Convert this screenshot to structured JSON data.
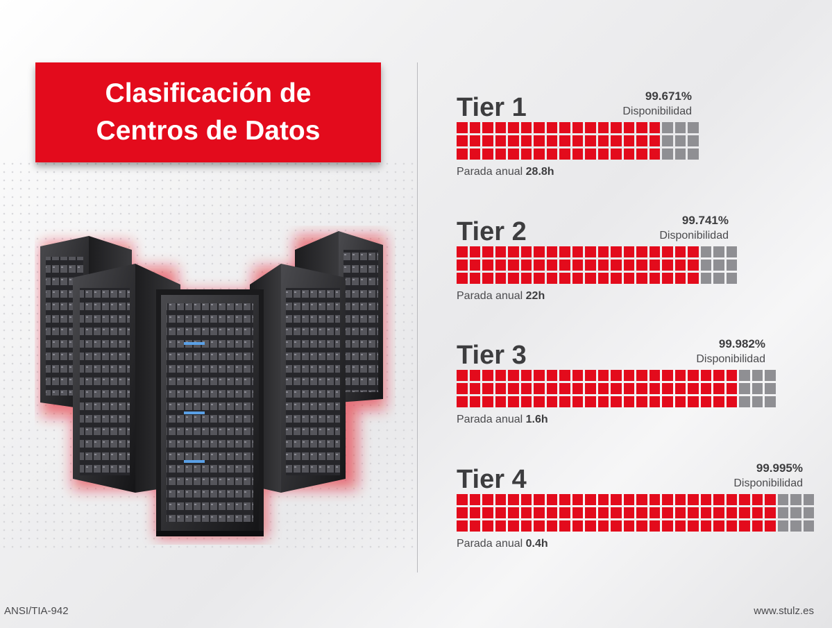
{
  "title": {
    "line1": "Clasificación de",
    "line2": "Centros de Datos"
  },
  "tiers": [
    {
      "name": "Tier 1",
      "availability": "99.671%",
      "availability_label": "Disponibilidad",
      "downtime_label": "Parada anual",
      "downtime_value": "28.8h",
      "red_columns": 16,
      "grey_columns": 3
    },
    {
      "name": "Tier 2",
      "availability": "99.741%",
      "availability_label": "Disponibilidad",
      "downtime_label": "Parada anual",
      "downtime_value": "22h",
      "red_columns": 19,
      "grey_columns": 3
    },
    {
      "name": "Tier 3",
      "availability": "99.982%",
      "availability_label": "Disponibilidad",
      "downtime_label": "Parada anual",
      "downtime_value": "1.6h",
      "red_columns": 22,
      "grey_columns": 3
    },
    {
      "name": "Tier 4",
      "availability": "99.995%",
      "availability_label": "Disponibilidad",
      "downtime_label": "Parada anual",
      "downtime_value": "0.4h",
      "red_columns": 25,
      "grey_columns": 3
    }
  ],
  "footer": {
    "standard": "ANSI/TIA-942",
    "website": "www.stulz.es"
  },
  "colors": {
    "accent": "#e30b1c",
    "grey_block": "#8f8f93",
    "text": "#3d3d3f"
  },
  "illustration": "server-racks"
}
